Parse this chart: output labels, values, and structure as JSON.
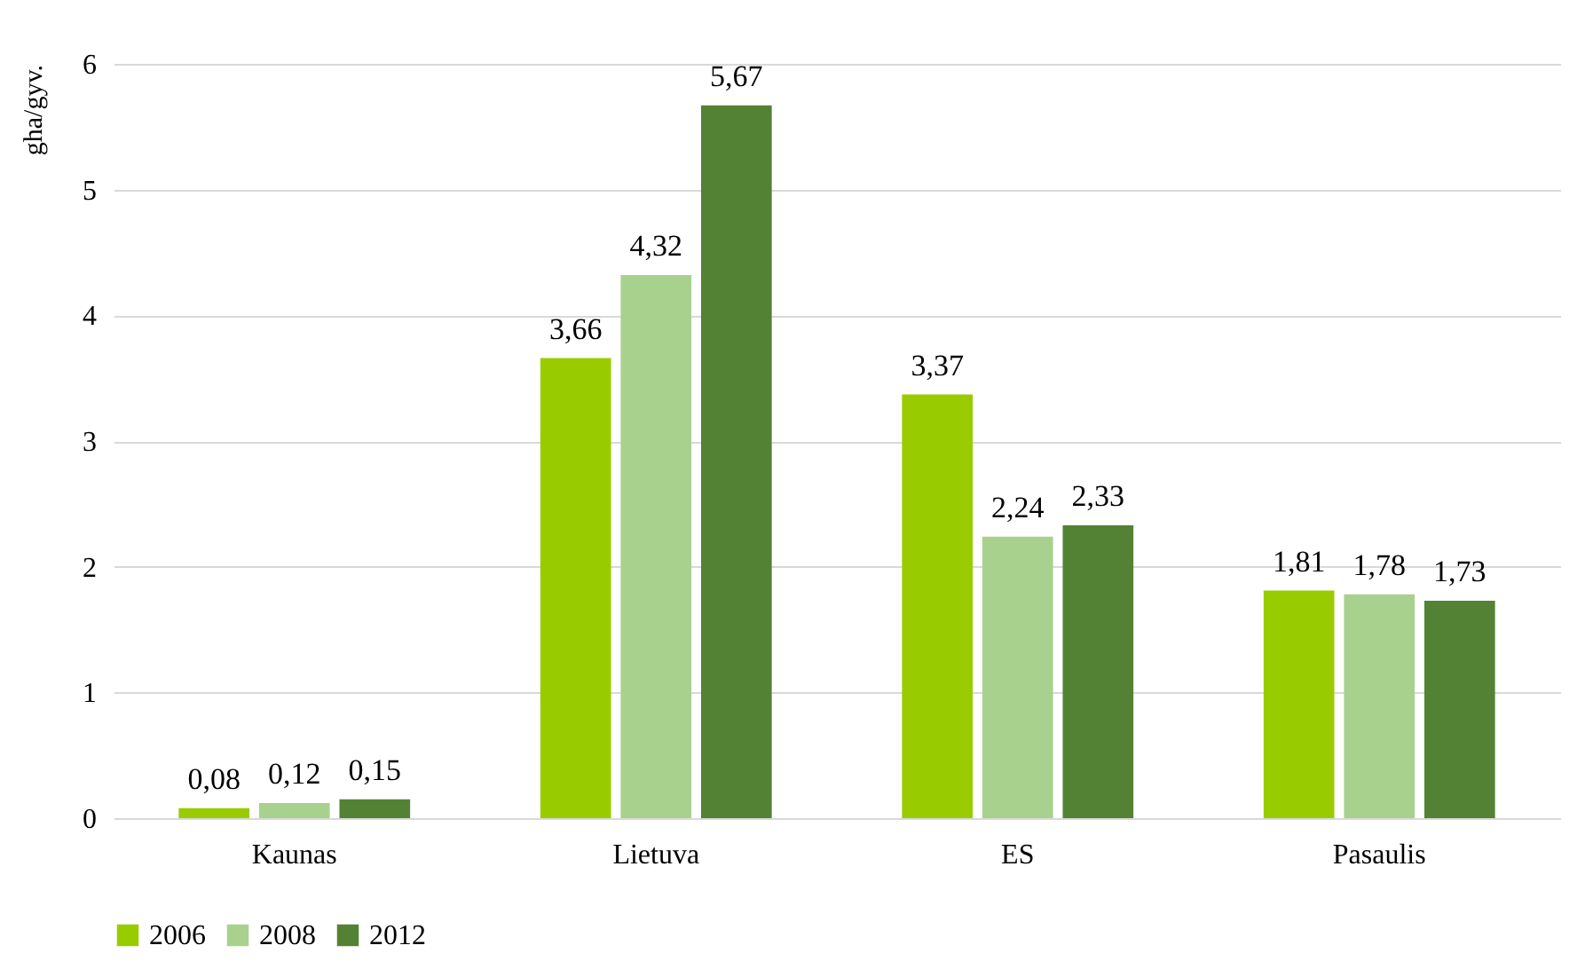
{
  "chart_data": {
    "type": "bar",
    "ylabel": "gha/gyv.",
    "categories": [
      "Kaunas",
      "Lietuva",
      "ES",
      "Pasaulis"
    ],
    "series": [
      {
        "name": "2006",
        "color": "#99cc00",
        "values": [
          0.08,
          3.66,
          3.37,
          1.81
        ],
        "value_labels": [
          "0,08",
          "3,66",
          "3,37",
          "1,81"
        ]
      },
      {
        "name": "2008",
        "color": "#a9d18e",
        "values": [
          0.12,
          4.32,
          2.24,
          1.78
        ],
        "value_labels": [
          "0,12",
          "4,32",
          "2,24",
          "1,78"
        ]
      },
      {
        "name": "2012",
        "color": "#548235",
        "values": [
          0.15,
          5.67,
          2.33,
          1.73
        ],
        "value_labels": [
          "0,15",
          "5,67",
          "2,33",
          "1,73"
        ]
      }
    ],
    "ylim": [
      0,
      6
    ],
    "yticks": [
      0,
      1,
      2,
      3,
      4,
      5,
      6
    ],
    "grid": "y",
    "legend": "bottom"
  }
}
